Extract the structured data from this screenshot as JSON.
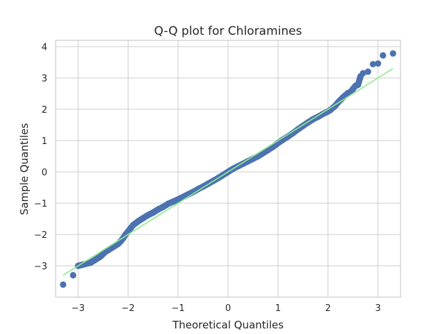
{
  "chart_data": {
    "type": "scatter",
    "title": "Q-Q plot for Chloramines",
    "xlabel": "Theoretical Quantiles",
    "ylabel": "Sample Quantiles",
    "xlim": [
      -3.45,
      3.45
    ],
    "ylim": [
      -4.0,
      4.2
    ],
    "xticks": [
      -3,
      -2,
      -1,
      0,
      1,
      2,
      3
    ],
    "yticks": [
      -3,
      -2,
      -1,
      0,
      1,
      2,
      3,
      4
    ],
    "xtick_labels": [
      "−3",
      "−2",
      "−1",
      "0",
      "1",
      "2",
      "3"
    ],
    "ytick_labels": [
      "−3",
      "−2",
      "−1",
      "0",
      "1",
      "2",
      "3",
      "4"
    ],
    "grid": true,
    "colors": {
      "points": "#4c72b0",
      "reference_line": "#90ee90",
      "grid": "#cccccc",
      "frame": "#cccccc"
    },
    "series": [
      {
        "kind": "points",
        "x": [
          -3.3,
          -3.1,
          -3.0,
          -2.95,
          -2.9,
          -2.85,
          -2.8,
          -2.75,
          -2.7,
          -2.65,
          -2.6,
          -2.55,
          -2.5,
          -2.45,
          -2.4,
          -2.35,
          -2.3,
          -2.25,
          -2.2,
          -2.15,
          -2.1,
          -2.05,
          -2.0,
          -1.95,
          -1.9,
          -1.8,
          -1.7,
          -1.6,
          -1.5,
          -1.4,
          -1.3,
          -1.2,
          -1.1,
          -1.0,
          -0.9,
          -0.8,
          -0.7,
          -0.6,
          -0.5,
          -0.4,
          -0.3,
          -0.2,
          -0.1,
          0.0,
          0.1,
          0.2,
          0.3,
          0.4,
          0.5,
          0.6,
          0.7,
          0.8,
          0.9,
          1.0,
          1.1,
          1.2,
          1.3,
          1.4,
          1.5,
          1.6,
          1.7,
          1.8,
          1.9,
          2.0,
          2.05,
          2.1,
          2.15,
          2.2,
          2.25,
          2.3,
          2.35,
          2.4,
          2.45,
          2.5,
          2.55,
          2.6,
          2.65,
          2.7,
          2.8,
          2.9,
          3.0,
          3.1,
          3.3
        ],
        "y": [
          -3.6,
          -3.3,
          -3.0,
          -2.98,
          -2.96,
          -2.94,
          -2.92,
          -2.9,
          -2.85,
          -2.8,
          -2.75,
          -2.7,
          -2.62,
          -2.55,
          -2.5,
          -2.45,
          -2.4,
          -2.35,
          -2.3,
          -2.22,
          -2.12,
          -2.0,
          -1.9,
          -1.8,
          -1.7,
          -1.58,
          -1.48,
          -1.38,
          -1.3,
          -1.2,
          -1.12,
          -1.02,
          -0.95,
          -0.88,
          -0.8,
          -0.72,
          -0.64,
          -0.55,
          -0.47,
          -0.38,
          -0.29,
          -0.2,
          -0.1,
          0.0,
          0.1,
          0.18,
          0.26,
          0.34,
          0.42,
          0.5,
          0.6,
          0.7,
          0.8,
          0.92,
          1.03,
          1.13,
          1.24,
          1.36,
          1.47,
          1.58,
          1.68,
          1.76,
          1.85,
          1.93,
          1.98,
          2.05,
          2.12,
          2.22,
          2.3,
          2.38,
          2.45,
          2.52,
          2.55,
          2.65,
          2.75,
          2.78,
          3.05,
          3.15,
          3.2,
          3.44,
          3.46,
          3.72,
          3.78
        ]
      },
      {
        "kind": "reference_line",
        "x": [
          -3.3,
          3.3
        ],
        "y": [
          -3.3,
          3.3
        ]
      }
    ]
  }
}
